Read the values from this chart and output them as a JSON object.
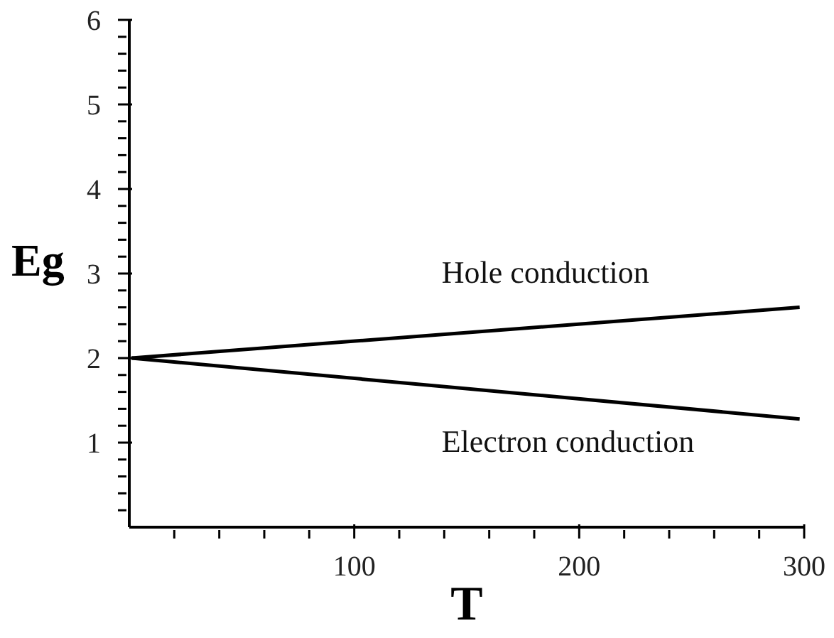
{
  "chart_data": {
    "type": "line",
    "xlabel": "T",
    "ylabel": "Eg",
    "xlim": [
      0,
      300
    ],
    "ylim": [
      0,
      6
    ],
    "xticks": [
      {
        "value": 20,
        "label": null
      },
      {
        "value": 40,
        "label": null
      },
      {
        "value": 60,
        "label": null
      },
      {
        "value": 80,
        "label": null
      },
      100,
      {
        "value": 120,
        "label": null
      },
      {
        "value": 140,
        "label": null
      },
      {
        "value": 160,
        "label": null
      },
      {
        "value": 180,
        "label": null
      },
      200,
      {
        "value": 220,
        "label": null
      },
      {
        "value": 240,
        "label": null
      },
      {
        "value": 260,
        "label": null
      },
      {
        "value": 280,
        "label": null
      },
      300
    ],
    "yticks": [
      {
        "value": 0.2,
        "label": null
      },
      {
        "value": 0.4,
        "label": null
      },
      {
        "value": 0.6,
        "label": null
      },
      {
        "value": 0.8,
        "label": null
      },
      1,
      {
        "value": 1.2,
        "label": null
      },
      {
        "value": 1.4,
        "label": null
      },
      {
        "value": 1.6,
        "label": null
      },
      {
        "value": 1.8,
        "label": null
      },
      2,
      {
        "value": 2.2,
        "label": null
      },
      {
        "value": 2.4,
        "label": null
      },
      {
        "value": 2.6,
        "label": null
      },
      {
        "value": 2.8,
        "label": null
      },
      3,
      {
        "value": 3.2,
        "label": null
      },
      {
        "value": 3.4,
        "label": null
      },
      {
        "value": 3.6,
        "label": null
      },
      {
        "value": 3.8,
        "label": null
      },
      4,
      {
        "value": 4.2,
        "label": null
      },
      {
        "value": 4.4,
        "label": null
      },
      {
        "value": 4.6,
        "label": null
      },
      {
        "value": 4.8,
        "label": null
      },
      5,
      {
        "value": 5.2,
        "label": null
      },
      {
        "value": 5.4,
        "label": null
      },
      {
        "value": 5.6,
        "label": null
      },
      {
        "value": 5.8,
        "label": null
      },
      6
    ],
    "x": [
      1,
      298
    ],
    "series": [
      {
        "color": "#000000",
        "values": [
          2.0,
          2.6
        ]
      },
      {
        "color": "#000000",
        "values": [
          2.0,
          1.28
        ]
      }
    ],
    "annotations": [
      "Hole conduction",
      "Electron conduction"
    ],
    "grid": false,
    "legend": false,
    "marker": "none",
    "line_style": "solid"
  }
}
